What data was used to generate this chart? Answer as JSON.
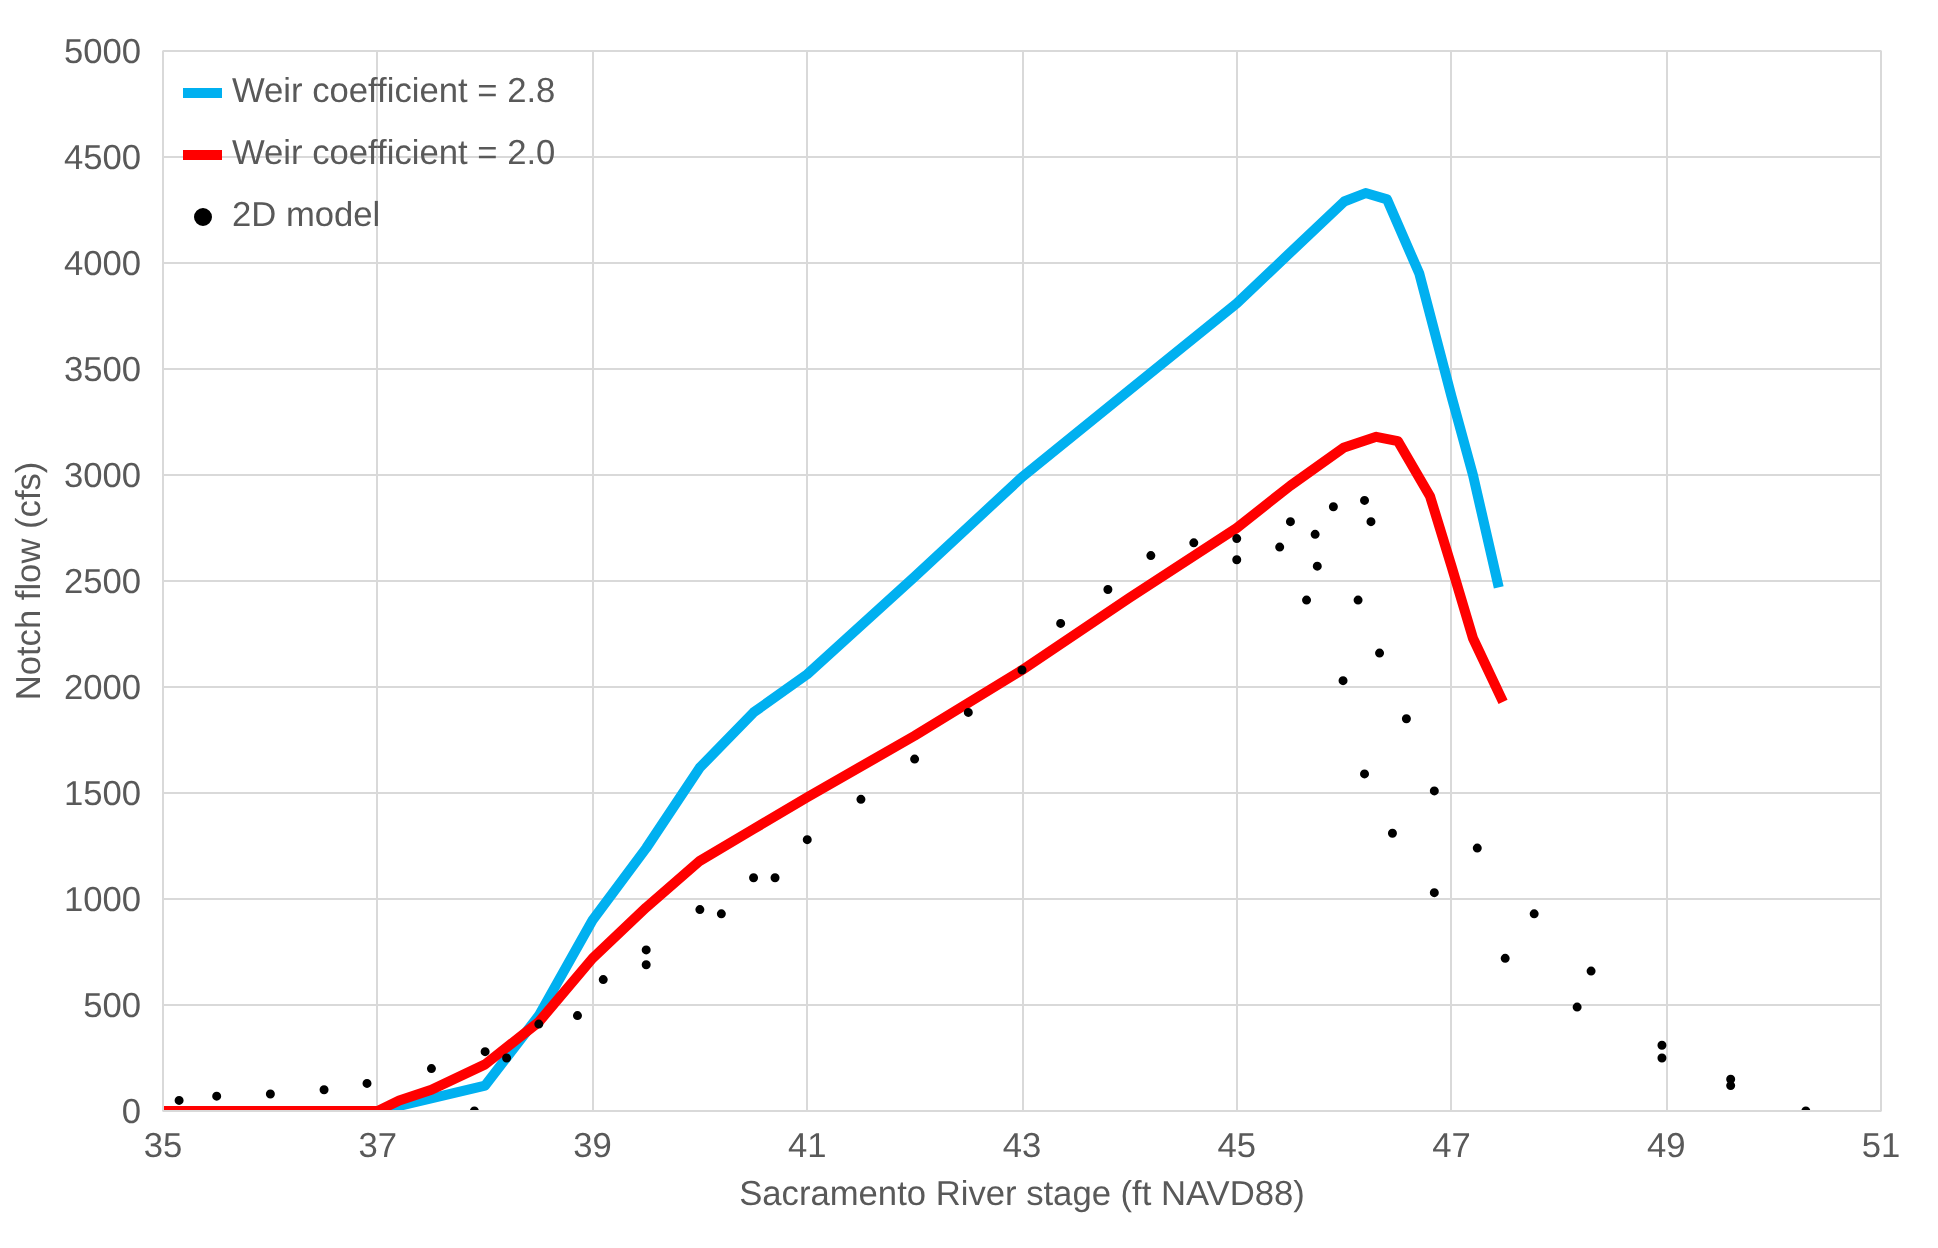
{
  "chart_data": {
    "type": "line",
    "xlabel": "Sacramento River stage (ft NAVD88)",
    "ylabel": "Notch flow (cfs)",
    "xlim": [
      35,
      51
    ],
    "xticks": [
      35,
      37,
      39,
      41,
      43,
      45,
      47,
      49,
      51
    ],
    "ylim": [
      0,
      5000
    ],
    "yticks": [
      0,
      500,
      1000,
      1500,
      2000,
      2500,
      3000,
      3500,
      4000,
      4500,
      5000
    ],
    "grid": true,
    "legend": "top left",
    "series": [
      {
        "name": "Weir coefficient = 2.8",
        "color": "#00b0f0",
        "x": [
          35,
          37,
          38,
          38.5,
          39,
          39.5,
          40,
          40.5,
          41,
          42,
          43,
          44,
          45,
          45.5,
          46,
          46.2,
          46.4,
          46.7,
          47,
          47.2,
          47.44
        ],
        "values": [
          0,
          0,
          120,
          450,
          900,
          1240,
          1620,
          1880,
          2060,
          2520,
          2990,
          3400,
          3810,
          4050,
          4290,
          4330,
          4300,
          3950,
          3370,
          3000,
          2470
        ]
      },
      {
        "name": "Weir coefficient = 2.0",
        "color": "#ff0000",
        "x": [
          35,
          37,
          37.2,
          37.5,
          38,
          38.5,
          39,
          39.5,
          40,
          40.5,
          41,
          42,
          43,
          44,
          45,
          45.5,
          46,
          46.3,
          46.5,
          46.8,
          47,
          47.2,
          47.48
        ],
        "values": [
          0,
          0,
          50,
          100,
          220,
          420,
          720,
          960,
          1180,
          1330,
          1480,
          1770,
          2080,
          2420,
          2750,
          2950,
          3130,
          3180,
          3160,
          2900,
          2570,
          2230,
          1930
        ]
      },
      {
        "name": "2D model",
        "color": "#000000",
        "type": "scatter",
        "marker": "circle",
        "x": [
          35.15,
          35.5,
          36,
          36.5,
          36.9,
          37.5,
          38.0,
          38.5,
          39.1,
          39.5,
          40,
          40.5,
          41,
          41.5,
          42,
          42.5,
          43,
          43.36,
          43.8,
          44.2,
          44.6,
          45,
          45.5,
          45.9,
          46.19,
          46.25,
          46.13,
          46.33,
          46.58,
          46.84,
          47.24,
          47.77,
          48.3,
          48.96,
          49.6,
          50.3,
          37.9,
          38.2,
          38.86,
          39.5,
          40.2,
          40.7,
          45,
          45.4,
          45.73,
          45.75,
          45.65,
          45.99,
          46.19,
          46.45,
          46.84,
          47.5,
          48.17,
          48.96,
          49.6
        ],
        "values": [
          50,
          70,
          80,
          100,
          130,
          200,
          280,
          410,
          620,
          760,
          950,
          1100,
          1280,
          1470,
          1660,
          1880,
          2080,
          2300,
          2460,
          2620,
          2680,
          2700,
          2780,
          2850,
          2880,
          2780,
          2410,
          2160,
          1850,
          1510,
          1240,
          930,
          660,
          310,
          150,
          0,
          0,
          250,
          450,
          690,
          930,
          1100,
          2600,
          2660,
          2720,
          2570,
          2410,
          2030,
          1590,
          1310,
          1030,
          720,
          490,
          250,
          120
        ]
      }
    ]
  }
}
